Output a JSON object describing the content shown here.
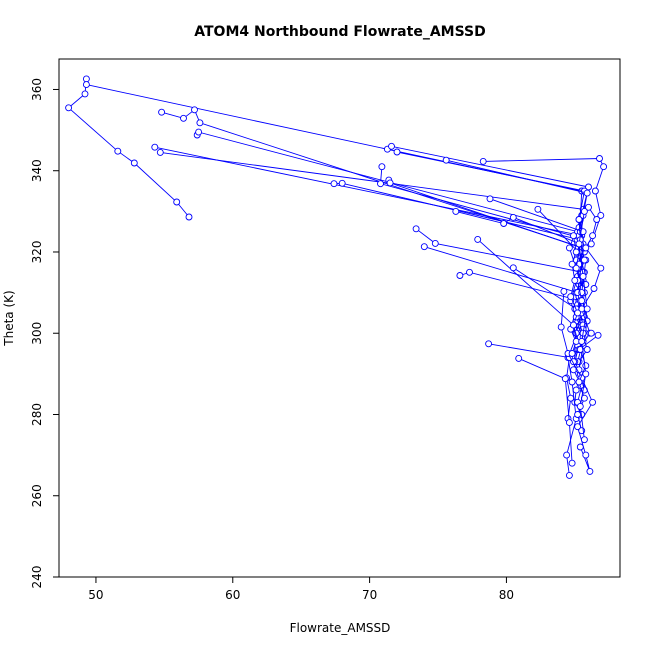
{
  "chart_data": {
    "type": "line",
    "title": "ATOM4 Northbound Flowrate_AMSSD",
    "xlabel": "Flowrate_AMSSD",
    "ylabel": "Theta (K)",
    "xlim": [
      47.3,
      88.3
    ],
    "ylim": [
      240,
      367.5
    ],
    "x_ticks": [
      50,
      60,
      70,
      80
    ],
    "y_ticks": [
      240,
      260,
      280,
      300,
      320,
      340,
      360
    ],
    "grid": false,
    "legend": "none",
    "series_color": "#0000ff",
    "marker": "open-circle",
    "series": [
      {
        "x": [
          49.3,
          49.2,
          48.0,
          51.6,
          52.8,
          55.9,
          56.8
        ],
        "y": [
          362.6,
          358.9,
          355.5,
          344.8,
          341.9,
          332.3,
          328.6
        ]
      },
      {
        "x": [
          49.3,
          85.5,
          85.4,
          84.6,
          85.1,
          85.7,
          85.5,
          85.2,
          85.9,
          85.3,
          85.4,
          85.1,
          85.0,
          85.5
        ],
        "y": [
          361.2,
          335.0,
          328.0,
          321.0,
          316.0,
          310.0,
          305.0,
          300.0,
          296.0,
          293.0,
          290.0,
          286.0,
          283.0,
          280.0
        ]
      },
      {
        "x": [
          54.8,
          56.4,
          57.2,
          57.6,
          85.6,
          85.2,
          84.7,
          85.3,
          84.5,
          84.8,
          85.1,
          84.4,
          84.6
        ],
        "y": [
          354.4,
          352.9,
          355.0,
          351.8,
          321.0,
          314.0,
          308.0,
          301.0,
          294.0,
          288.0,
          279.0,
          270.0,
          265.0
        ]
      },
      {
        "x": [
          57.4,
          57.5,
          85.2,
          85.6,
          85.3,
          85.0,
          85.4,
          85.2,
          84.9,
          85.5,
          85.2
        ],
        "y": [
          348.8,
          349.5,
          325.0,
          318.0,
          312.0,
          306.0,
          300.0,
          296.0,
          291.0,
          287.0,
          283.0
        ]
      },
      {
        "x": [
          54.3,
          85.5,
          85.2,
          85.6,
          85.1,
          85.4,
          85.3,
          85.6,
          85.2
        ],
        "y": [
          345.8,
          324.0,
          319.0,
          315.0,
          310.0,
          307.0,
          302.0,
          298.0,
          293.0
        ]
      },
      {
        "x": [
          54.7,
          85.6,
          85.3,
          85.5,
          85.1,
          85.7,
          85.3,
          85.6,
          85.2
        ],
        "y": [
          344.5,
          330.5,
          326.0,
          322.0,
          317.0,
          312.0,
          308.0,
          303.0,
          298.0
        ]
      },
      {
        "x": [
          67.4,
          68.0,
          85.4,
          85.1,
          85.6,
          85.3,
          85.2,
          84.9,
          85.4
        ],
        "y": [
          336.8,
          336.9,
          323.0,
          318.0,
          314.0,
          309.0,
          305.0,
          301.0,
          297.0
        ]
      },
      {
        "x": [
          70.9,
          70.8,
          85.4,
          85.1,
          85.6,
          85.3,
          85.5
        ],
        "y": [
          341.0,
          336.8,
          323.5,
          318.0,
          313.0,
          308.0,
          304.0
        ]
      },
      {
        "x": [
          71.4,
          71.5,
          85.5,
          85.3,
          85.8,
          85.2,
          85.6,
          85.4
        ],
        "y": [
          337.7,
          337.0,
          321.0,
          316.0,
          312.0,
          307.0,
          302.0,
          299.0
        ]
      },
      {
        "x": [
          71.3,
          71.6,
          86.0,
          85.5,
          85.3,
          85.7,
          85.4
        ],
        "y": [
          345.3,
          346.0,
          336.0,
          329.0,
          324.0,
          320.0,
          315.0
        ]
      },
      {
        "x": [
          72.0,
          85.7,
          85.3,
          85.6,
          85.2,
          85.5
        ],
        "y": [
          344.6,
          335.0,
          328.0,
          322.0,
          316.0,
          311.0
        ]
      },
      {
        "x": [
          75.6,
          85.9,
          85.6,
          85.4,
          85.7,
          85.3
        ],
        "y": [
          342.6,
          334.5,
          329.0,
          325.0,
          321.0,
          317.0
        ]
      },
      {
        "x": [
          78.3,
          86.8,
          87.1,
          86.5,
          86.9,
          86.2
        ],
        "y": [
          342.3,
          343.0,
          341.0,
          335.0,
          329.0,
          322.0
        ]
      },
      {
        "x": [
          78.8,
          85.6,
          85.3,
          85.7,
          85.4
        ],
        "y": [
          333.1,
          325.0,
          320.0,
          315.0,
          310.0
        ]
      },
      {
        "x": [
          76.3,
          79.8,
          80.5,
          85.4,
          85.1,
          85.5,
          85.2
        ],
        "y": [
          330.0,
          327.0,
          328.5,
          322.0,
          316.0,
          311.0,
          306.0
        ]
      },
      {
        "x": [
          73.4,
          74.8,
          85.6,
          85.3,
          85.7
        ],
        "y": [
          325.7,
          322.1,
          315.0,
          309.0,
          304.0
        ]
      },
      {
        "x": [
          74.0,
          85.2,
          85.5,
          85.1
        ],
        "y": [
          321.3,
          310.0,
          305.0,
          300.0
        ]
      },
      {
        "x": [
          76.6,
          77.3,
          85.4,
          85.1,
          85.6
        ],
        "y": [
          314.2,
          315.0,
          308.0,
          303.0,
          299.0
        ]
      },
      {
        "x": [
          77.9,
          84.9,
          85.3,
          85.0,
          85.4
        ],
        "y": [
          323.1,
          302.0,
          297.0,
          293.0,
          290.0
        ]
      },
      {
        "x": [
          80.5,
          85.1,
          84.7,
          85.2,
          84.9
        ],
        "y": [
          316.1,
          306.0,
          301.0,
          297.0,
          293.0
        ]
      },
      {
        "x": [
          82.3,
          85.8,
          85.5,
          85.9,
          85.6,
          85.3,
          85.7
        ],
        "y": [
          330.5,
          318.0,
          310.0,
          303.0,
          297.0,
          291.0,
          286.0
        ]
      },
      {
        "x": [
          78.7,
          84.6,
          84.4,
          84.7,
          84.5
        ],
        "y": [
          297.4,
          294.0,
          289.0,
          284.0,
          279.0
        ]
      },
      {
        "x": [
          80.9,
          84.3,
          84.6,
          84.8
        ],
        "y": [
          293.8,
          288.8,
          278.0,
          268.0
        ]
      },
      {
        "x": [
          84.2,
          84.0,
          84.5,
          85.5,
          86.3,
          85.2,
          85.8,
          86.1,
          85.4
        ],
        "y": [
          310.3,
          301.5,
          295.0,
          289.0,
          283.0,
          277.0,
          270.0,
          266.0,
          272.0
        ]
      },
      {
        "x": [
          86.0,
          86.6,
          86.3,
          85.8,
          86.9,
          86.4,
          85.5,
          86.1,
          85.3,
          86.7,
          86.2,
          85.6
        ],
        "y": [
          331.0,
          328.0,
          324.0,
          321.0,
          316.0,
          311.0,
          306.0,
          300.0,
          296.0,
          299.5,
          300.0,
          301.0
        ]
      },
      {
        "x": [
          85.5,
          85.2,
          85.7,
          85.3,
          85.8,
          85.4,
          85.6,
          85.1,
          85.5,
          85.2,
          85.7,
          85.4,
          85.3
        ],
        "y": [
          276.0,
          280.0,
          284.0,
          288.0,
          292.0,
          296.0,
          300.0,
          304.0,
          308.0,
          313.0,
          318.0,
          323.0,
          328.0
        ]
      },
      {
        "x": [
          84.8,
          85.1,
          84.9,
          85.2,
          84.7,
          85.0,
          84.8,
          85.1,
          84.9
        ],
        "y": [
          295.0,
          298.0,
          302.0,
          305.0,
          309.0,
          313.0,
          317.0,
          320.0,
          324.0
        ]
      },
      {
        "x": [
          85.7,
          85.4,
          85.8,
          85.5,
          85.9,
          85.6,
          85.3,
          85.7
        ],
        "y": [
          273.8,
          282.0,
          290.0,
          298.0,
          306.0,
          314.0,
          322.0,
          330.0
        ]
      }
    ]
  }
}
